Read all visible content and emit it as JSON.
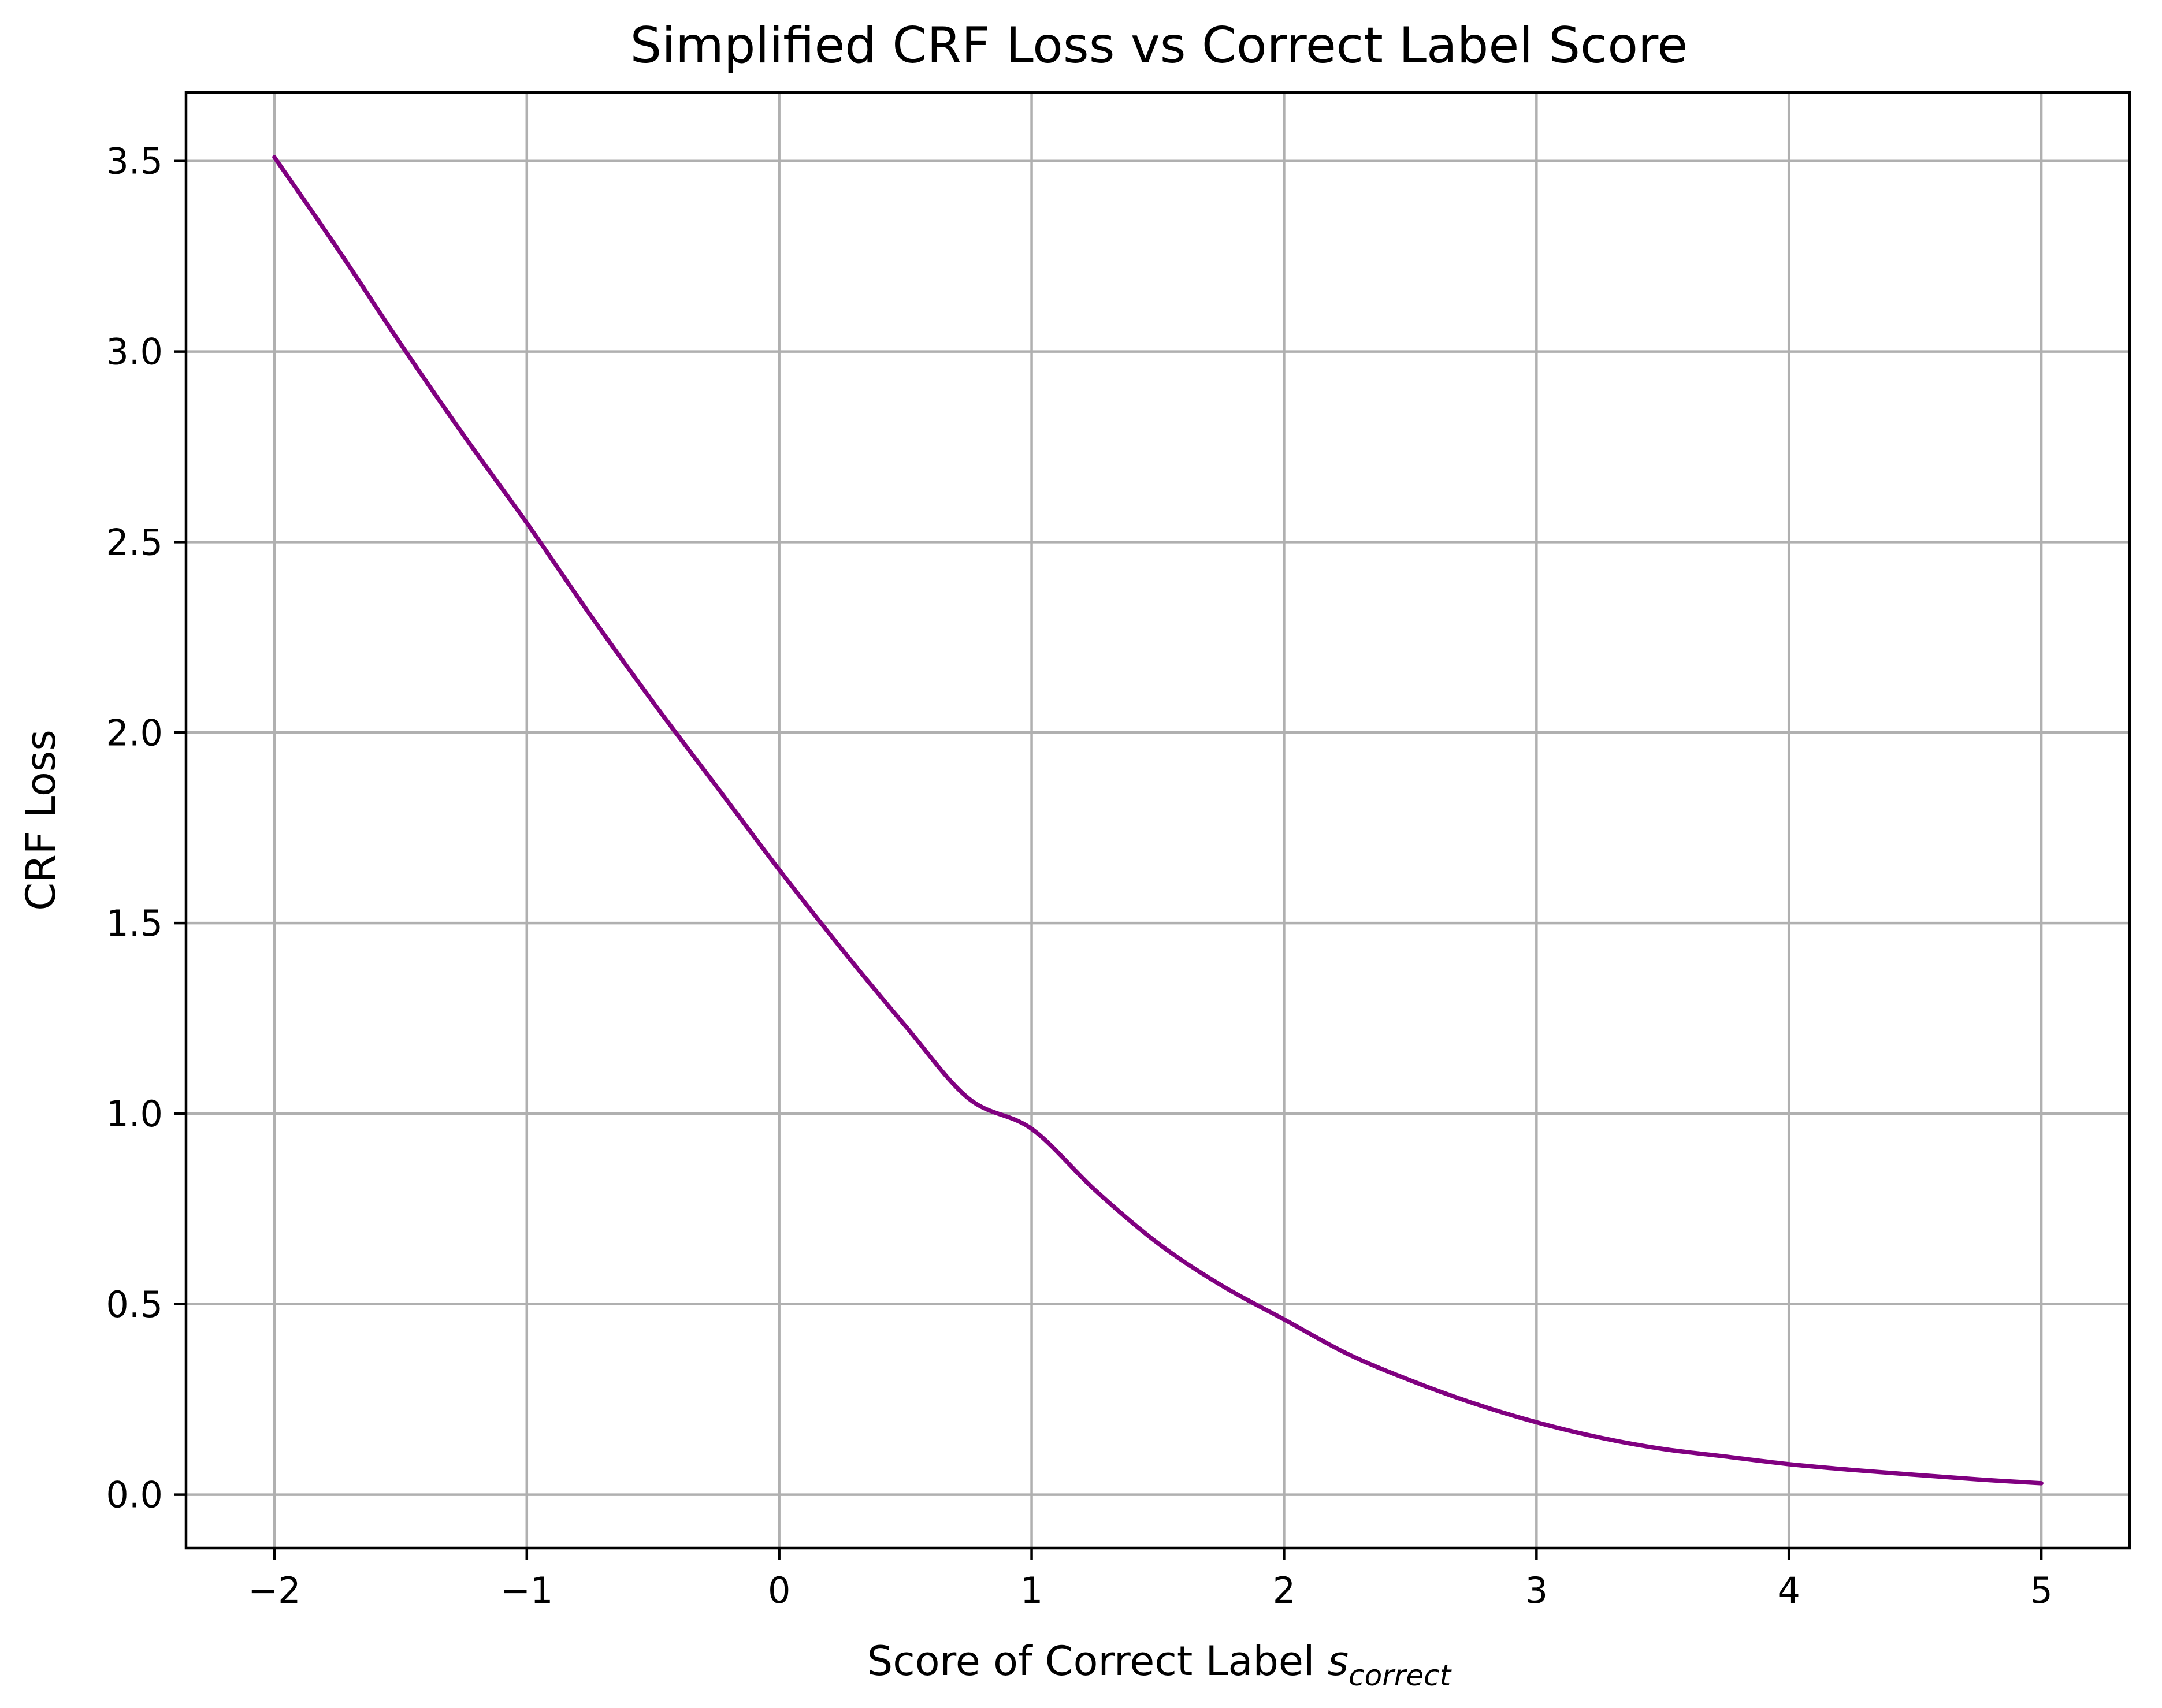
{
  "chart_data": {
    "type": "line",
    "title": "Simplified CRF Loss vs Correct Label Score",
    "xlabel": {
      "main": "Score of Correct Label ",
      "symbol": "s",
      "subscript": "correct"
    },
    "ylabel": "CRF Loss",
    "xlim": [
      -2.35,
      5.35
    ],
    "ylim": [
      -0.14,
      3.68
    ],
    "xticks": [
      {
        "value": -2,
        "label": "−2"
      },
      {
        "value": -1,
        "label": "−1"
      },
      {
        "value": 0,
        "label": "0"
      },
      {
        "value": 1,
        "label": "1"
      },
      {
        "value": 2,
        "label": "2"
      },
      {
        "value": 3,
        "label": "3"
      },
      {
        "value": 4,
        "label": "4"
      },
      {
        "value": 5,
        "label": "5"
      }
    ],
    "yticks": [
      {
        "value": 0.0,
        "label": "0.0"
      },
      {
        "value": 0.5,
        "label": "0.5"
      },
      {
        "value": 1.0,
        "label": "1.0"
      },
      {
        "value": 1.5,
        "label": "1.5"
      },
      {
        "value": 2.0,
        "label": "2.0"
      },
      {
        "value": 2.5,
        "label": "2.5"
      },
      {
        "value": 3.0,
        "label": "3.0"
      },
      {
        "value": 3.5,
        "label": "3.5"
      }
    ],
    "grid": true,
    "series": [
      {
        "color": "#800080",
        "x": [
          -2.0,
          -1.75,
          -1.5,
          -1.25,
          -1.0,
          -0.75,
          -0.5,
          -0.25,
          0.0,
          0.25,
          0.5,
          0.75,
          1.0,
          1.25,
          1.5,
          1.75,
          2.0,
          2.25,
          2.5,
          2.75,
          3.0,
          3.25,
          3.5,
          3.75,
          4.0,
          4.25,
          4.5,
          4.75,
          5.0
        ],
        "y": [
          3.51,
          3.27,
          3.02,
          2.78,
          2.55,
          2.31,
          2.08,
          1.86,
          1.64,
          1.43,
          1.23,
          1.04,
          0.96,
          0.8,
          0.66,
          0.55,
          0.46,
          0.37,
          0.3,
          0.24,
          0.19,
          0.15,
          0.12,
          0.1,
          0.08,
          0.065,
          0.052,
          0.04,
          0.03
        ]
      }
    ]
  }
}
